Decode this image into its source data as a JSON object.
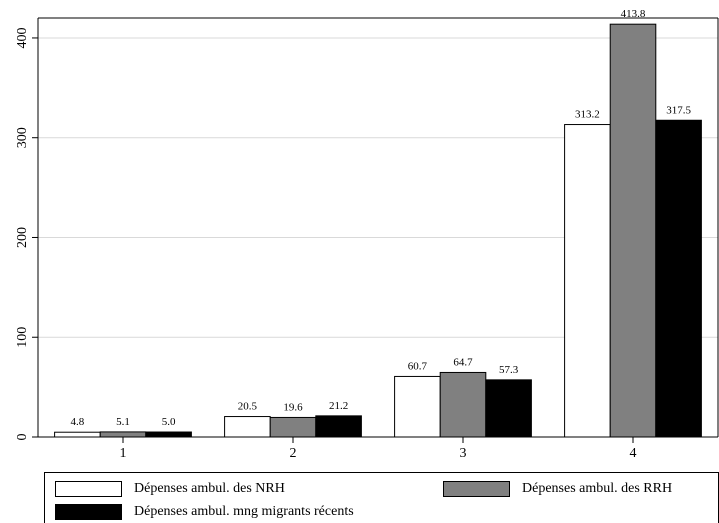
{
  "chart_data": {
    "type": "bar",
    "categories": [
      "1",
      "2",
      "3",
      "4"
    ],
    "series": [
      {
        "name": "Dépenses ambul. des NRH",
        "color": "#ffffff",
        "values": [
          4.8,
          20.5,
          60.7,
          313.2
        ],
        "labels": [
          "4.8",
          "20.5",
          "60.7",
          "313.2"
        ]
      },
      {
        "name": "Dépenses ambul. des RRH",
        "color": "#808080",
        "values": [
          5.1,
          19.6,
          64.7,
          413.8
        ],
        "labels": [
          "5.1",
          "19.6",
          "64.7",
          "413.8"
        ]
      },
      {
        "name": "Dépenses ambul. mng migrants récents",
        "color": "#000000",
        "values": [
          5.0,
          21.2,
          57.3,
          317.5
        ],
        "labels": [
          "5.0",
          "21.2",
          "57.3",
          "317.5"
        ]
      }
    ],
    "ylim": [
      0,
      420
    ],
    "yticks": [
      "0",
      "100",
      "200",
      "300",
      "400"
    ],
    "ytick_values": [
      0,
      100,
      200,
      300,
      400
    ],
    "grid": true,
    "legend_position": "bottom"
  }
}
